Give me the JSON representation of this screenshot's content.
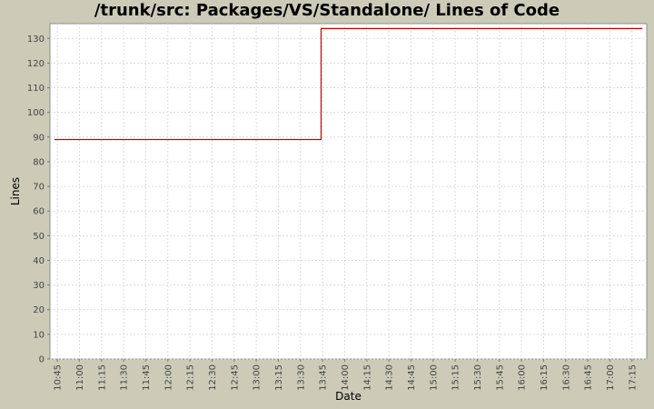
{
  "chart_data": {
    "type": "line",
    "title": "/trunk/src: Packages/VS/Standalone/ Lines of Code",
    "xlabel": "Date",
    "ylabel": "Lines",
    "x_tick_labels": [
      "10:45",
      "11:00",
      "11:15",
      "11:30",
      "11:45",
      "12:00",
      "12:15",
      "12:30",
      "12:45",
      "13:00",
      "13:15",
      "13:30",
      "13:45",
      "14:00",
      "14:15",
      "14:30",
      "14:45",
      "15:00",
      "15:15",
      "15:30",
      "15:45",
      "16:00",
      "16:15",
      "16:30",
      "16:45",
      "17:00",
      "17:15"
    ],
    "ylim": [
      0,
      136
    ],
    "y_ticks": [
      0,
      10,
      20,
      30,
      40,
      50,
      60,
      70,
      80,
      90,
      100,
      110,
      120,
      130
    ],
    "xlim": [
      "10:40",
      "17:25"
    ],
    "grid": true,
    "step": true,
    "series": [
      {
        "color": "#cc0000",
        "points": [
          {
            "x": "10:43",
            "y": 89
          },
          {
            "x": "13:44",
            "y": 89
          },
          {
            "x": "13:44",
            "y": 134
          },
          {
            "x": "17:22",
            "y": 134
          }
        ]
      }
    ]
  }
}
